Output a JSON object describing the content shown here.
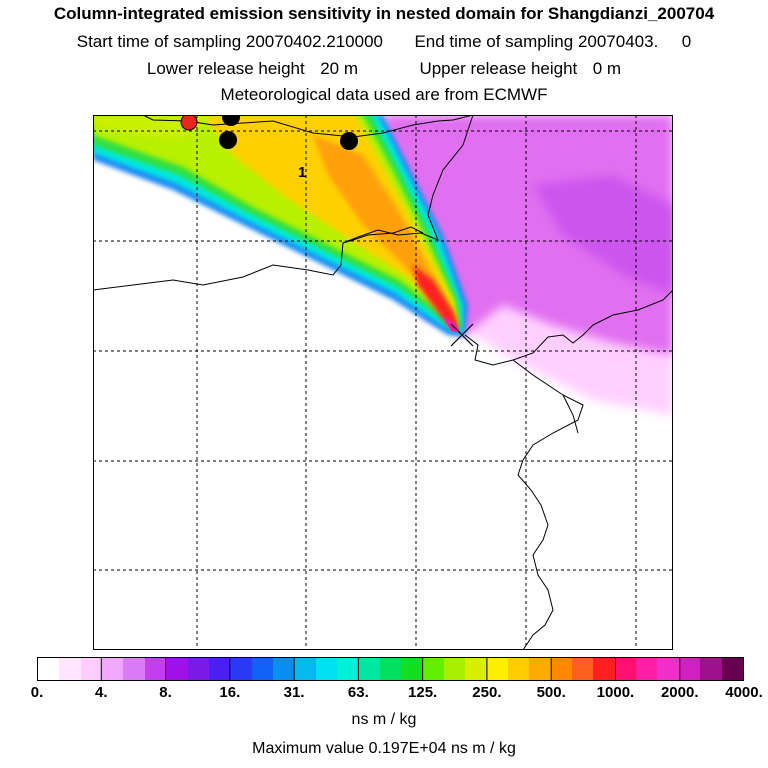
{
  "header": {
    "title": "Column-integrated emission sensitivity in nested domain for Shangdianzi_200704",
    "start_label": "Start time of sampling",
    "start_value": "20070402.210000",
    "end_label": "End time of sampling",
    "end_value": "20070403.",
    "end_suffix": "0",
    "lower_label": "Lower release height",
    "lower_value": "20 m",
    "upper_label": "Upper release height",
    "upper_value": "0 m",
    "met_line": "Meteorological data used are from ECMWF"
  },
  "map": {
    "plume_label": "1",
    "receptor_marker": "x-marker",
    "point_colors": {
      "red": "#e8271c",
      "black": "#000000"
    }
  },
  "colorbar": {
    "colors": [
      "#ffffff",
      "#ffe6ff",
      "#ffccff",
      "#f0a8ff",
      "#d97cf5",
      "#c040f0",
      "#a010e8",
      "#7a1ae6",
      "#4a20f0",
      "#2a3af5",
      "#1062f5",
      "#0890f0",
      "#05b8f0",
      "#00e0f0",
      "#00f0d8",
      "#00e8a0",
      "#00e060",
      "#10e020",
      "#60f000",
      "#a8f000",
      "#d8f000",
      "#ffee00",
      "#ffcc00",
      "#ffaa00",
      "#ff8800",
      "#ff6020",
      "#ff2020",
      "#ff1070",
      "#ff20a8",
      "#ee30c8",
      "#d020c0",
      "#a0108c",
      "#6a0050"
    ],
    "tick_labels": [
      "0.",
      "4.",
      "8.",
      "16.",
      "31.",
      "63.",
      "125.",
      "250.",
      "500.",
      "1000.",
      "2000.",
      "4000."
    ],
    "units": "ns m / kg"
  },
  "footer": {
    "max_label": "Maximum value",
    "max_value": "0.197E+04",
    "max_units": "ns m / kg"
  }
}
